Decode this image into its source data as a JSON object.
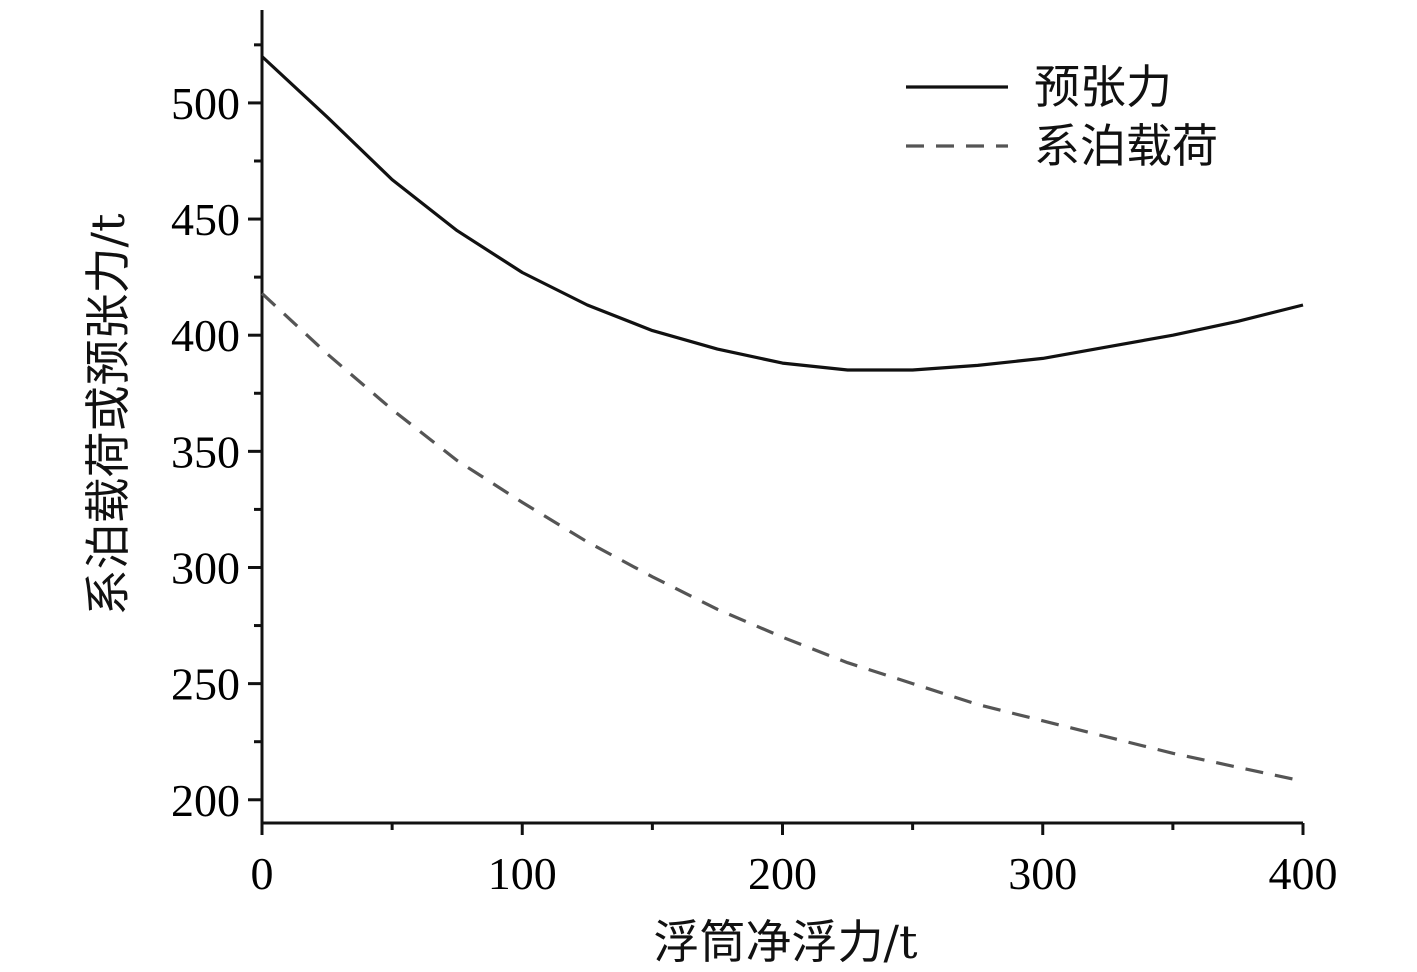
{
  "chart_data": {
    "type": "line",
    "title": "",
    "xlabel": "浮筒净浮力/t",
    "ylabel": "系泊载荷或预张力/t",
    "xlim": [
      0,
      400
    ],
    "ylim": [
      190,
      540
    ],
    "xticks": [
      0,
      100,
      200,
      300,
      400
    ],
    "xtick_labels": [
      "0",
      "100",
      "200",
      "300",
      "400"
    ],
    "yticks": [
      200,
      250,
      300,
      350,
      400,
      450,
      500
    ],
    "ytick_labels": [
      "200",
      "250",
      "300",
      "350",
      "400",
      "450",
      "500"
    ],
    "x_minor_step": 50,
    "y_minor_step": 25,
    "grid": false,
    "legend_position": "top-right",
    "series": [
      {
        "name": "预张力",
        "style": "solid",
        "color": "#111111",
        "x": [
          0,
          25,
          50,
          75,
          100,
          125,
          150,
          175,
          200,
          225,
          250,
          275,
          300,
          325,
          350,
          375,
          400
        ],
        "y": [
          520,
          494,
          467,
          445,
          427,
          413,
          402,
          394,
          388,
          385,
          385,
          387,
          390,
          395,
          400,
          406,
          413
        ]
      },
      {
        "name": "系泊载荷",
        "style": "dashed",
        "color": "#555555",
        "x": [
          0,
          25,
          50,
          75,
          100,
          125,
          150,
          175,
          200,
          225,
          250,
          275,
          300,
          325,
          350,
          375,
          400
        ],
        "y": [
          418,
          392,
          368,
          346,
          328,
          311,
          296,
          282,
          270,
          259,
          250,
          241,
          234,
          227,
          220,
          214,
          208
        ]
      }
    ]
  }
}
